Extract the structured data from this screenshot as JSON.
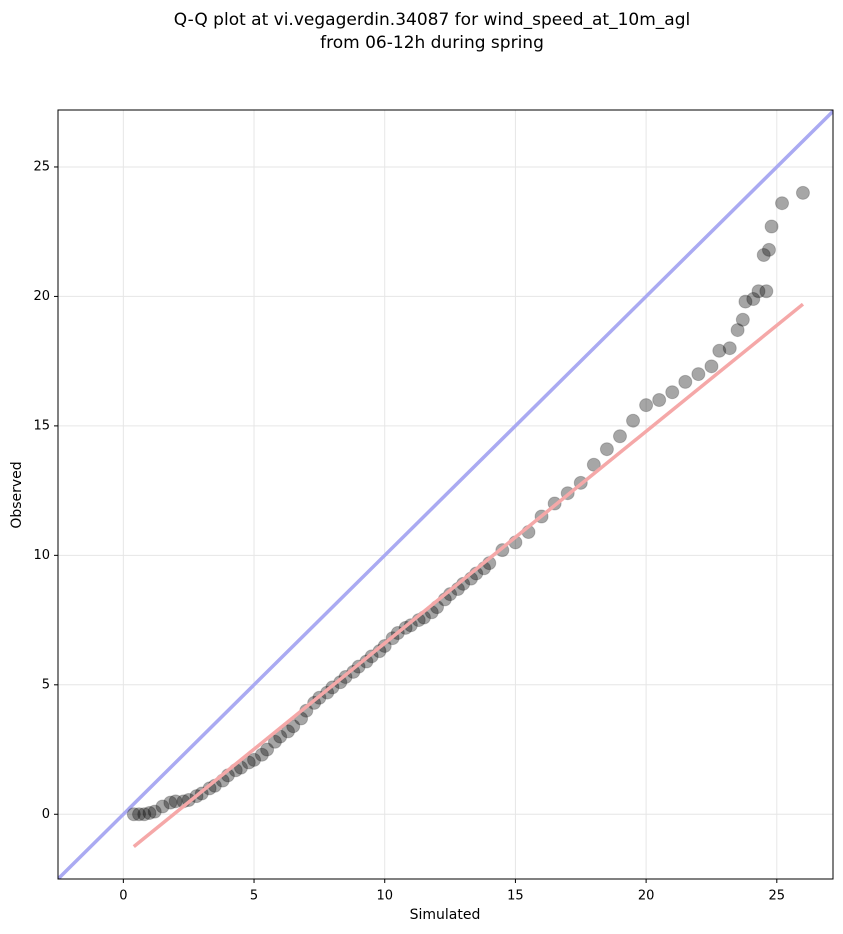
{
  "chart_data": {
    "type": "scatter",
    "title": "Q-Q plot at vi.vegagerdin.34087 for wind_speed_at_10m_agl",
    "subtitle": "from 06-12h during spring",
    "x_label": "Simulated",
    "y_label": "Observed",
    "xlim": [
      -2.5,
      27.15
    ],
    "ylim": [
      -2.5,
      27.2
    ],
    "xticks": [
      0,
      5,
      10,
      15,
      20,
      25
    ],
    "yticks": [
      0,
      5,
      10,
      15,
      20,
      25
    ],
    "grid": true,
    "color": "#000000",
    "series": [
      {
        "color": "#000000",
        "x": [
          0.4,
          0.6,
          0.8,
          1,
          1.2,
          1.5,
          1.8,
          2,
          2.3,
          2.5,
          2.8,
          3,
          3.3,
          3.5,
          3.8,
          4,
          4.3,
          4.5,
          4.8,
          5,
          5.3,
          5.5,
          5.8,
          6,
          6.3,
          6.5,
          6.8,
          7,
          7.3,
          7.5,
          7.8,
          8,
          8.3,
          8.5,
          8.8,
          9,
          9.3,
          9.5,
          9.8,
          10,
          10.3,
          10.5,
          10.8,
          11,
          11.3,
          11.5,
          11.8,
          12,
          12.3,
          12.5,
          12.8,
          13,
          13.3,
          13.5,
          13.8,
          14,
          14.5,
          15,
          15.5,
          16,
          16.5,
          17,
          17.5,
          18,
          18.5,
          19,
          19.5,
          20,
          20.5,
          21,
          21.5,
          22,
          22.5,
          22.8,
          23.2,
          23.5,
          23.7,
          23.8,
          24.1,
          24.3,
          24.6,
          24.5,
          24.7,
          24.8,
          25.2,
          26
        ],
        "values": [
          0,
          0,
          0,
          0.05,
          0.1,
          0.3,
          0.45,
          0.5,
          0.5,
          0.55,
          0.7,
          0.8,
          1.0,
          1.1,
          1.3,
          1.5,
          1.7,
          1.8,
          2.0,
          2.1,
          2.3,
          2.5,
          2.8,
          3.0,
          3.2,
          3.4,
          3.7,
          4.0,
          4.3,
          4.5,
          4.7,
          4.9,
          5.1,
          5.3,
          5.5,
          5.7,
          5.9,
          6.1,
          6.3,
          6.5,
          6.8,
          7.0,
          7.2,
          7.3,
          7.5,
          7.6,
          7.8,
          8.0,
          8.3,
          8.5,
          8.7,
          8.9,
          9.1,
          9.3,
          9.5,
          9.7,
          10.2,
          10.5,
          10.9,
          11.5,
          12.0,
          12.4,
          12.8,
          13.5,
          14.1,
          14.6,
          15.2,
          15.8,
          16.0,
          16.3,
          16.7,
          17.0,
          17.3,
          17.9,
          18.0,
          18.7,
          19.1,
          19.8,
          19.9,
          20.2,
          20.2,
          21.6,
          21.8,
          22.7,
          23.6,
          24.0
        ]
      }
    ],
    "reference_lines": [
      {
        "color": "#aaaaf2",
        "x": [
          -2.5,
          27.2
        ],
        "values": [
          -2.5,
          27.2
        ]
      },
      {
        "color": "#f5a8a8",
        "x": [
          0.4,
          26
        ],
        "values": [
          -1.25,
          19.7
        ]
      }
    ]
  }
}
